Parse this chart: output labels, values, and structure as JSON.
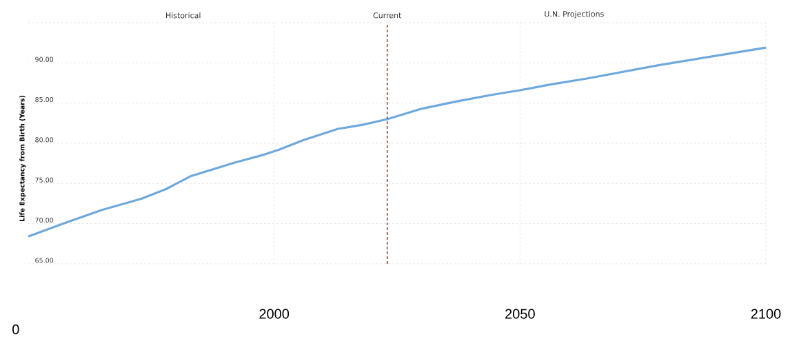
{
  "chart_data": {
    "type": "line",
    "ylabel": "Life Expectancy from Birth (Years)",
    "annotations": [
      "Historical",
      "U.N. Projections",
      "0"
    ],
    "x": [
      1950,
      1958,
      1965,
      1973,
      1978,
      1983,
      1992,
      1998,
      2001,
      2006,
      2013,
      2018,
      2023,
      2030,
      2037,
      2044,
      2050,
      2056,
      2064,
      2078,
      2091,
      2100
    ],
    "series": [
      {
        "color": "#6fa8dc",
        "values": [
          68.4,
          70.2,
          71.7,
          73.1,
          74.3,
          75.9,
          77.6,
          78.6,
          79.2,
          80.4,
          81.8,
          82.3,
          83.0,
          84.3,
          85.2,
          86.0,
          86.6,
          87.3,
          88.1,
          89.7,
          91.0,
          91.9
        ]
      }
    ],
    "xlim": [
      1950,
      2100
    ],
    "xticks": [
      2000,
      2050,
      2100
    ],
    "ylim": [
      65,
      95
    ],
    "yticks": [
      {
        "value": 65,
        "label": "65.00"
      },
      {
        "value": 70,
        "label": "70.00"
      },
      {
        "value": 75,
        "label": "75.00"
      },
      {
        "value": 80,
        "label": "80.00"
      },
      {
        "value": 85,
        "label": "85.00"
      },
      {
        "value": 90,
        "label": "90.00"
      },
      {
        "value": 95,
        "label": null
      }
    ],
    "ref_lines": [
      {
        "axis": "x",
        "value": 2023,
        "label": "Current",
        "color": "#e02020",
        "line_style": "dashed"
      }
    ],
    "grid": true,
    "marker": "none",
    "line_style": "solid"
  }
}
